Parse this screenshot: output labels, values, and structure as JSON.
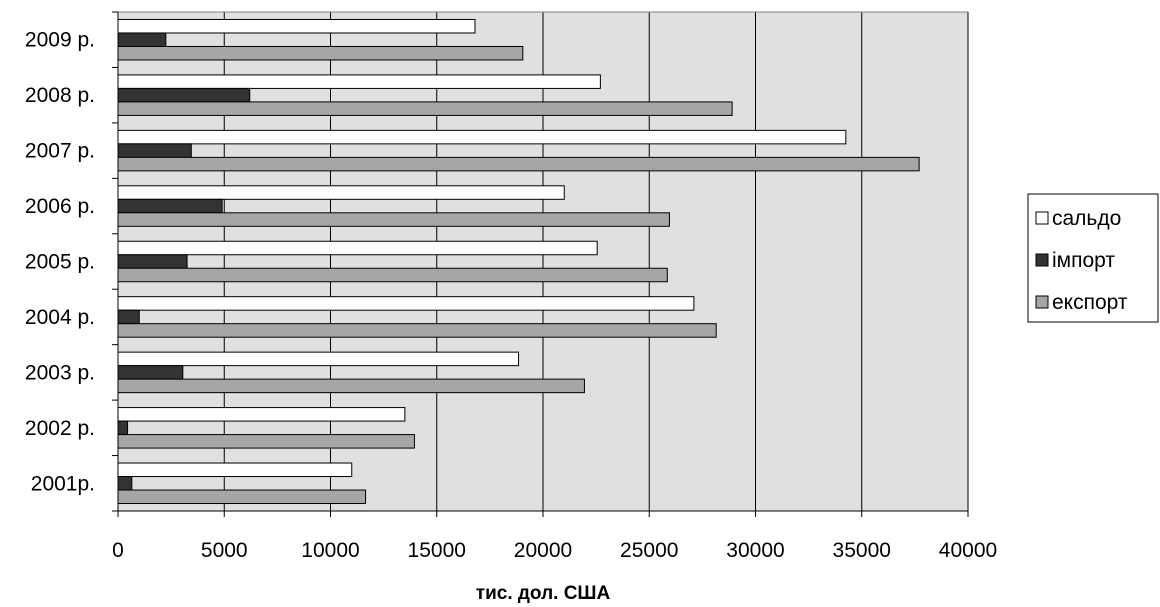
{
  "chart_data": {
    "type": "bar",
    "orientation": "horizontal",
    "categories": [
      "2001р.",
      "2002 р.",
      "2003 р.",
      "2004 р.",
      "2005 р.",
      "2006 р.",
      "2007 р.",
      "2008 р.",
      "2009 р."
    ],
    "series": [
      {
        "name": "сальдо",
        "color": "#ffffff",
        "values": [
          11000,
          13500,
          18850,
          27100,
          22550,
          21000,
          34250,
          22700,
          16800
        ]
      },
      {
        "name": "імпорт",
        "color": "#333333",
        "values": [
          650,
          450,
          3050,
          1000,
          3250,
          4900,
          3450,
          6200,
          2250
        ]
      },
      {
        "name": "експорт",
        "color": "#a6a6a6",
        "values": [
          11650,
          13950,
          21950,
          28150,
          25850,
          25950,
          37700,
          28900,
          19050
        ]
      }
    ],
    "xlim": [
      0,
      40000
    ],
    "xticks": [
      "0",
      "5000",
      "10000",
      "15000",
      "20000",
      "25000",
      "30000",
      "35000",
      "40000"
    ],
    "xlabel": "тис. дол. США",
    "ylabel": "",
    "title": "",
    "grid": "vertical",
    "plot_background": "#e0e0e0",
    "legend_position": "right"
  }
}
